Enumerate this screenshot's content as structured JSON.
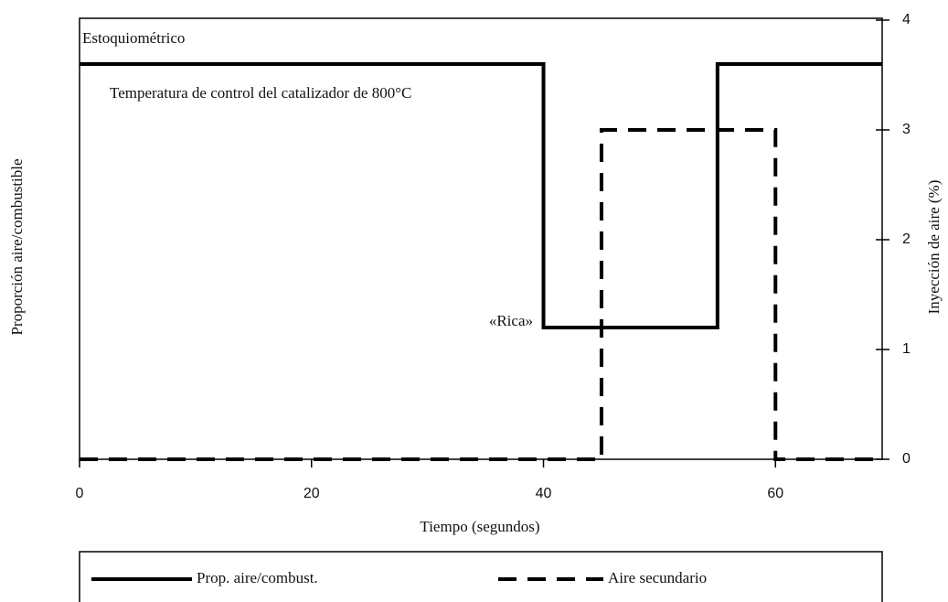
{
  "chart_data": {
    "type": "line",
    "xlabel": "Tiempo (segundos)",
    "ylabel": "Proporción aire/combustible",
    "y2label": "Inyección de aire (%)",
    "annotations": [
      "Estoquiométrico",
      "Temperatura de control del catalizador de 800°C",
      "«Rica»"
    ],
    "xlim": [
      0,
      69.2
    ],
    "xticks": [
      0,
      20,
      40,
      60
    ],
    "ylim": [
      0,
      4
    ],
    "yticks": [
      0,
      1,
      2,
      3,
      4
    ],
    "legend": "bottom",
    "series": [
      {
        "name": "Prop. aire/combust.",
        "color": "#000000",
        "dash": false,
        "x": [
          0,
          40,
          40,
          55,
          55,
          69.2
        ],
        "values": [
          3.6,
          3.6,
          1.2,
          1.2,
          3.6,
          3.6
        ]
      },
      {
        "name": "Aire secundario",
        "color": "#000000",
        "dash": true,
        "x": [
          0,
          45,
          45,
          60,
          60,
          69.2
        ],
        "values": [
          0,
          0,
          3,
          3,
          0,
          0
        ]
      }
    ]
  }
}
